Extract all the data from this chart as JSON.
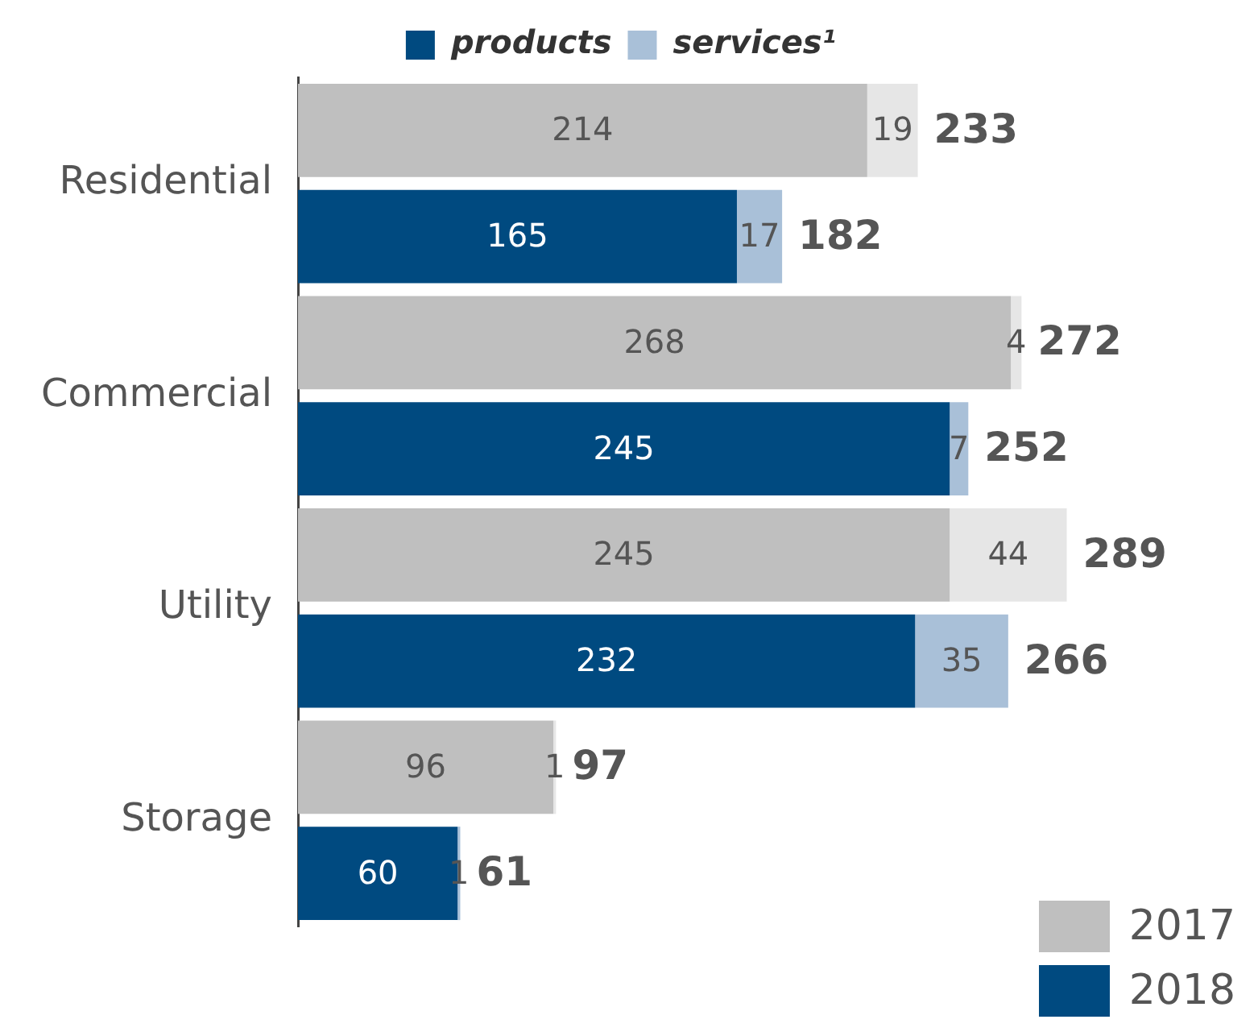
{
  "chart_data": {
    "type": "bar",
    "orientation": "horizontal",
    "stacked": true,
    "categories": [
      "Residential",
      null,
      "Commercial",
      null,
      "Utility",
      null,
      "Storage",
      null
    ],
    "series": [
      {
        "name": "products",
        "colors": [
          "#bfbfbf",
          "#004a80",
          "#bfbfbf",
          "#004a80",
          "#bfbfbf",
          "#004a80",
          "#bfbfbf",
          "#004a80"
        ],
        "values": [
          214,
          165,
          268,
          245,
          245,
          232,
          96,
          60
        ]
      },
      {
        "name": "services¹",
        "colors": [
          "#e6e6e6",
          "#a9c0d8",
          "#e6e6e6",
          "#a9c0d8",
          "#e6e6e6",
          "#a9c0d8",
          "#e6e6e6",
          "#a9c0d8"
        ],
        "values": [
          19,
          17,
          4,
          7,
          44,
          35,
          1,
          1
        ]
      }
    ],
    "data_labels": true,
    "totals": [
      "233",
      "182",
      "272",
      "252",
      "289",
      "266",
      "97",
      "61"
    ],
    "legend": "top",
    "grid": false,
    "annotations": [
      "2017",
      "2018"
    ]
  }
}
